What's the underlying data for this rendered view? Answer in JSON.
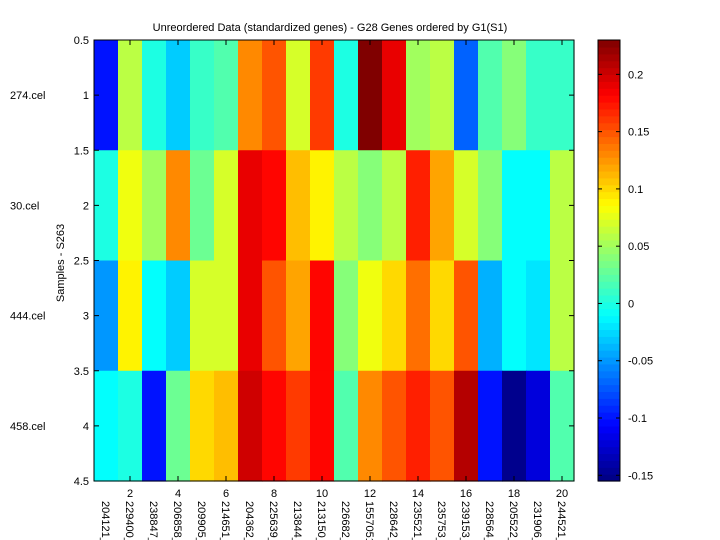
{
  "chart_data": {
    "type": "heatmap",
    "title": "Unreordered Data (standardized genes) - G28 Genes ordered by G1(S1)",
    "xlabel": "",
    "ylabel": "Samples - S263",
    "x_numeric_ticks": [
      "2",
      "4",
      "6",
      "8",
      "10",
      "12",
      "14",
      "16",
      "18",
      "20"
    ],
    "y_numeric_ticks": [
      "0.5",
      "1",
      "1.5",
      "2",
      "2.5",
      "3",
      "3.5",
      "4",
      "4.5"
    ],
    "ylim": [
      0.5,
      4.5
    ],
    "xlim": [
      0.5,
      20.5
    ],
    "row_labels": [
      "274.cel",
      "30.cel",
      "444.cel",
      "458.cel"
    ],
    "column_labels": [
      "204121_",
      "229400_",
      "238847_",
      "206858_",
      "209905_",
      "214651_",
      "204362_",
      "225639_",
      "213844_",
      "213150_",
      "226682_",
      "1557051",
      "228642_",
      "235521_",
      "235753_",
      "239153_",
      "228564_",
      "205522_",
      "231906_",
      "244521_"
    ],
    "color_range": [
      -0.155,
      0.23
    ],
    "colorbar_ticks": [
      "-0.15",
      "-0.1",
      "-0.05",
      "0",
      "0.05",
      "0.1",
      "0.15",
      "0.2"
    ],
    "colorbar_tick_values": [
      -0.15,
      -0.1,
      -0.05,
      0,
      0.05,
      0.1,
      0.15,
      0.2
    ],
    "colormap": "jet",
    "values": [
      [
        -0.1,
        0.06,
        0.0,
        -0.03,
        0.01,
        0.02,
        0.13,
        0.15,
        0.07,
        0.16,
        0.0,
        0.23,
        0.19,
        0.05,
        0.06,
        -0.07,
        0.02,
        0.04,
        0.01,
        0.01
      ],
      [
        0.0,
        0.08,
        0.05,
        0.13,
        0.03,
        0.07,
        0.19,
        0.18,
        0.11,
        0.09,
        0.06,
        0.04,
        0.06,
        0.17,
        0.12,
        0.07,
        0.04,
        -0.01,
        -0.01,
        0.06
      ],
      [
        -0.05,
        0.09,
        -0.01,
        -0.03,
        0.07,
        0.07,
        0.19,
        0.15,
        0.12,
        0.18,
        0.04,
        0.08,
        0.1,
        0.14,
        0.1,
        0.15,
        -0.04,
        -0.01,
        -0.02,
        0.06
      ],
      [
        -0.01,
        0.0,
        -0.1,
        0.03,
        0.1,
        0.11,
        0.2,
        0.18,
        0.16,
        0.18,
        0.02,
        0.13,
        0.15,
        0.17,
        0.15,
        0.21,
        -0.1,
        -0.15,
        -0.12,
        0.02
      ]
    ]
  }
}
